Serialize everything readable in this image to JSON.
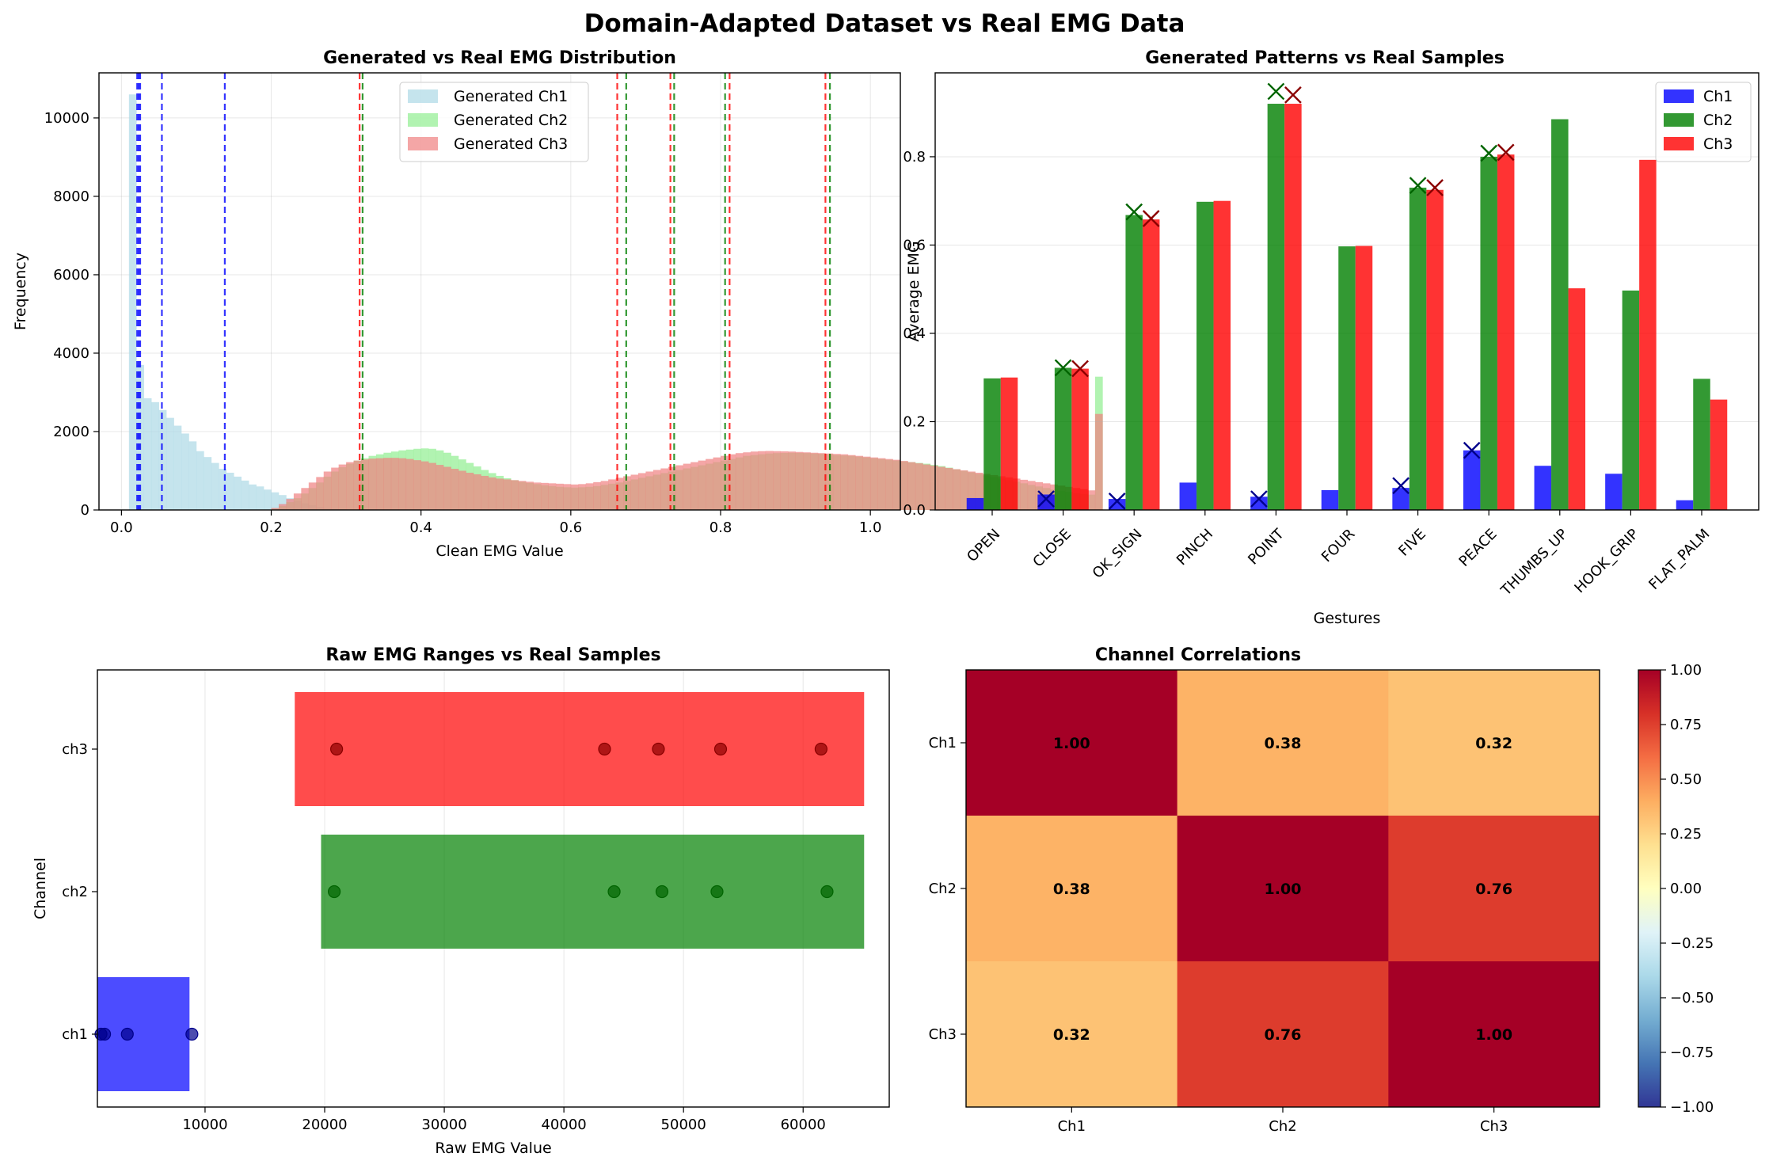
{
  "suptitle": "Domain-Adapted Dataset vs Real EMG Data",
  "chart_data": [
    {
      "id": "hist",
      "type": "bar",
      "title": "Generated vs Real EMG Distribution",
      "xlabel": "Clean EMG Value",
      "ylabel": "Frequency",
      "xlim": [
        -0.03,
        1.04
      ],
      "ylim": [
        0,
        11150
      ],
      "xticks": [
        0.0,
        0.2,
        0.4,
        0.6,
        0.8,
        1.0
      ],
      "xtick_labels": [
        "0.0",
        "0.2",
        "0.4",
        "0.6",
        "0.8",
        "1.0"
      ],
      "yticks": [
        0,
        2000,
        4000,
        6000,
        8000,
        10000
      ],
      "ytick_labels": [
        "0",
        "2000",
        "4000",
        "6000",
        "8000",
        "10000"
      ],
      "grid": true,
      "legend_position": "top-center",
      "bin_start": 0.0,
      "bin_width": 0.01,
      "series": [
        {
          "name": "Generated Ch1",
          "color": "#add8e6",
          "opacity": 0.7,
          "values": [
            0,
            10600,
            3700,
            2850,
            2750,
            2550,
            2350,
            2150,
            1950,
            1750,
            1500,
            1350,
            1200,
            1050,
            950,
            850,
            750,
            650,
            600,
            520,
            450,
            380,
            300,
            230,
            170,
            120,
            80,
            50,
            30,
            20,
            10,
            5
          ]
        },
        {
          "name": "Generated Ch2",
          "color": "#90ee90",
          "opacity": 0.7,
          "values": [
            0,
            0,
            0,
            0,
            0,
            0,
            0,
            0,
            0,
            0,
            0,
            0,
            0,
            0,
            0,
            0,
            0,
            0,
            0,
            0,
            30,
            100,
            200,
            300,
            420,
            560,
            700,
            850,
            980,
            1090,
            1180,
            1260,
            1320,
            1380,
            1420,
            1460,
            1490,
            1520,
            1540,
            1560,
            1570,
            1560,
            1520,
            1460,
            1380,
            1290,
            1200,
            1110,
            1020,
            940,
            870,
            810,
            760,
            720,
            690,
            660,
            630,
            610,
            590,
            580,
            570,
            580,
            590,
            610,
            640,
            670,
            700,
            740,
            780,
            820,
            860,
            900,
            940,
            980,
            1020,
            1060,
            1100,
            1140,
            1180,
            1220,
            1260,
            1300,
            1340,
            1380,
            1400,
            1420,
            1440,
            1450,
            1455,
            1460,
            1455,
            1450,
            1440,
            1430,
            1420,
            1400,
            1390,
            1380,
            1360,
            1340,
            1320,
            1300,
            1280,
            1260,
            1240,
            1220,
            1200,
            1180,
            1150,
            1120,
            1080,
            1040,
            1000,
            960,
            920,
            880,
            840,
            800,
            760,
            720,
            680,
            640,
            600,
            560,
            520,
            490,
            460,
            430,
            410,
            390,
            3400
          ]
        },
        {
          "name": "Generated Ch3",
          "color": "#f08080",
          "opacity": 0.7,
          "values": [
            0,
            0,
            0,
            0,
            0,
            0,
            0,
            0,
            0,
            0,
            0,
            0,
            0,
            0,
            0,
            0,
            0,
            0,
            0,
            0,
            50,
            150,
            280,
            420,
            560,
            700,
            840,
            980,
            1080,
            1160,
            1220,
            1260,
            1290,
            1310,
            1320,
            1330,
            1330,
            1320,
            1300,
            1270,
            1240,
            1200,
            1150,
            1100,
            1050,
            1000,
            950,
            910,
            870,
            830,
            800,
            780,
            760,
            740,
            720,
            700,
            690,
            680,
            670,
            660,
            650,
            660,
            680,
            710,
            740,
            780,
            820,
            860,
            900,
            940,
            980,
            1020,
            1060,
            1100,
            1140,
            1180,
            1220,
            1260,
            1300,
            1340,
            1380,
            1420,
            1450,
            1470,
            1490,
            1500,
            1505,
            1500,
            1495,
            1490,
            1480,
            1470,
            1460,
            1450,
            1440,
            1430,
            1420,
            1400,
            1380,
            1360,
            1340,
            1320,
            1300,
            1280,
            1250,
            1220,
            1190,
            1160,
            1130,
            1100,
            1070,
            1040,
            1010,
            980,
            950,
            920,
            890,
            860,
            830,
            800,
            770,
            740,
            710,
            680,
            650,
            620,
            590,
            560,
            530,
            500,
            2450
          ]
        }
      ],
      "vlines": [
        {
          "x": 0.021,
          "color": "#0000ff"
        },
        {
          "x": 0.023,
          "color": "#0000ff"
        },
        {
          "x": 0.025,
          "color": "#0000ff"
        },
        {
          "x": 0.054,
          "color": "#0000ff"
        },
        {
          "x": 0.138,
          "color": "#0000ff"
        },
        {
          "x": 0.318,
          "color": "#ff0000"
        },
        {
          "x": 0.322,
          "color": "#008000"
        },
        {
          "x": 0.662,
          "color": "#ff0000"
        },
        {
          "x": 0.674,
          "color": "#008000"
        },
        {
          "x": 0.733,
          "color": "#ff0000"
        },
        {
          "x": 0.738,
          "color": "#008000"
        },
        {
          "x": 0.806,
          "color": "#008000"
        },
        {
          "x": 0.812,
          "color": "#ff0000"
        },
        {
          "x": 0.94,
          "color": "#ff0000"
        },
        {
          "x": 0.946,
          "color": "#008000"
        }
      ]
    },
    {
      "id": "gestures",
      "type": "bar",
      "title": "Generated Patterns vs Real Samples",
      "xlabel": "Gestures",
      "ylabel": "Average EMG",
      "ylim": [
        0,
        0.99
      ],
      "yticks": [
        0.0,
        0.2,
        0.4,
        0.6,
        0.8
      ],
      "ytick_labels": [
        "0.0",
        "0.2",
        "0.4",
        "0.6",
        "0.8"
      ],
      "grid": true,
      "legend_position": "top-right",
      "categories": [
        "OPEN",
        "CLOSE",
        "OK_SIGN",
        "PINCH",
        "POINT",
        "FOUR",
        "FIVE",
        "PEACE",
        "THUMBS_UP",
        "HOOK_GRIP",
        "FLAT_PALM"
      ],
      "series": [
        {
          "name": "Ch1",
          "color": "#0000ff",
          "marker_color": "#00008b",
          "values": [
            0.027,
            0.035,
            0.025,
            0.062,
            0.03,
            0.045,
            0.05,
            0.135,
            0.1,
            0.082,
            0.022
          ]
        },
        {
          "name": "Ch2",
          "color": "#008000",
          "marker_color": "#006400",
          "values": [
            0.298,
            0.322,
            0.668,
            0.698,
            0.92,
            0.597,
            0.73,
            0.8,
            0.885,
            0.497,
            0.297
          ]
        },
        {
          "name": "Ch3",
          "color": "#ff0000",
          "marker_color": "#8b0000",
          "values": [
            0.3,
            0.32,
            0.658,
            0.7,
            0.92,
            0.598,
            0.725,
            0.805,
            0.502,
            0.793,
            0.25
          ]
        }
      ],
      "real_markers": [
        {
          "category": "CLOSE",
          "values": [
            0.025,
            0.322,
            0.32
          ]
        },
        {
          "category": "OK_SIGN",
          "values": [
            0.02,
            0.675,
            0.66
          ]
        },
        {
          "category": "POINT",
          "values": [
            0.025,
            0.948,
            0.94
          ]
        },
        {
          "category": "FIVE",
          "values": [
            0.055,
            0.735,
            0.73
          ]
        },
        {
          "category": "PEACE",
          "values": [
            0.135,
            0.808,
            0.81
          ]
        }
      ]
    },
    {
      "id": "ranges",
      "type": "bar",
      "title": "Raw EMG Ranges vs Real Samples",
      "xlabel": "Raw EMG Value",
      "ylabel": "Channel",
      "xlim": [
        1000,
        67200
      ],
      "xticks": [
        10000,
        20000,
        30000,
        40000,
        50000,
        60000
      ],
      "xtick_labels": [
        "10000",
        "20000",
        "30000",
        "40000",
        "50000",
        "60000"
      ],
      "grid": true,
      "categories": [
        "ch1",
        "ch2",
        "ch3"
      ],
      "ranges": [
        {
          "channel": "ch1",
          "min": 1000,
          "max": 8700,
          "color": "#0000ff",
          "dot_color": "#00008b"
        },
        {
          "channel": "ch2",
          "min": 19700,
          "max": 65100,
          "color": "#008000",
          "dot_color": "#006400"
        },
        {
          "channel": "ch3",
          "min": 17500,
          "max": 65100,
          "color": "#ff0000",
          "dot_color": "#8b0000"
        }
      ],
      "real_samples": {
        "ch1": [
          1300,
          1600,
          3500,
          8900
        ],
        "ch2": [
          20800,
          44200,
          48200,
          52800,
          62000
        ],
        "ch3": [
          21000,
          43400,
          47900,
          53100,
          61500
        ]
      }
    },
    {
      "id": "corr",
      "type": "heatmap",
      "title": "Channel Correlations",
      "labels": [
        "Ch1",
        "Ch2",
        "Ch3"
      ],
      "matrix": [
        [
          1.0,
          0.38,
          0.32
        ],
        [
          0.38,
          1.0,
          0.76
        ],
        [
          0.32,
          0.76,
          1.0
        ]
      ],
      "cell_text": [
        [
          "1.00",
          "0.38",
          "0.32"
        ],
        [
          "0.38",
          "1.00",
          "0.76"
        ],
        [
          "0.32",
          "0.76",
          "1.00"
        ]
      ],
      "colormap": "RdYlBu_r",
      "vmin": -1,
      "vmax": 1,
      "colorbar_ticks": [
        1.0,
        0.75,
        0.5,
        0.25,
        0.0,
        -0.25,
        -0.5,
        -0.75,
        -1.0
      ],
      "colorbar_tick_labels": [
        "1.00",
        "0.75",
        "0.50",
        "0.25",
        "0.00",
        "−0.25",
        "−0.50",
        "−0.75",
        "−1.00"
      ]
    }
  ]
}
